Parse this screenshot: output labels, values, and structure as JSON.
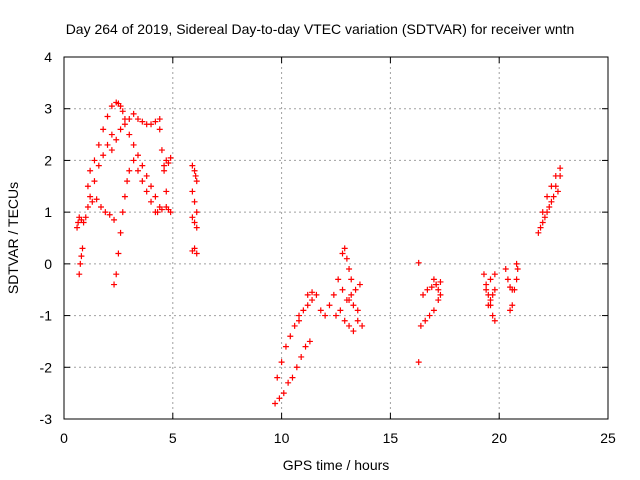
{
  "chart_data": {
    "type": "scatter",
    "title": "Day 264 of 2019, Sidereal Day-to-day VTEC variation (SDTVAR) for receiver wntn",
    "xlabel": "GPS time / hours",
    "ylabel": "SDTVAR / TECUs",
    "xlim": [
      0,
      25
    ],
    "ylim": [
      -3,
      4
    ],
    "xticks": [
      0,
      5,
      10,
      15,
      20,
      25
    ],
    "yticks": [
      -3,
      -2,
      -1,
      0,
      1,
      2,
      3,
      4
    ],
    "grid": true,
    "marker": "+",
    "color": "#ff0000",
    "series": [
      {
        "name": "SDTVAR",
        "segments": [
          {
            "x": [
              0.6,
              0.65,
              0.7,
              0.8,
              0.9,
              1.0
            ],
            "y": [
              0.7,
              0.8,
              0.9,
              0.85,
              0.8,
              0.9
            ]
          },
          {
            "x": [
              0.7,
              0.75,
              0.8,
              0.85
            ],
            "y": [
              -0.2,
              0.0,
              0.15,
              0.3
            ]
          },
          {
            "x": [
              1.1,
              1.2,
              1.4,
              1.6,
              1.8,
              2.0,
              2.2,
              2.4
            ],
            "y": [
              1.5,
              1.8,
              2.0,
              2.3,
              2.6,
              2.85,
              3.05,
              3.12
            ]
          },
          {
            "x": [
              2.5,
              2.6,
              2.7,
              2.8
            ],
            "y": [
              3.1,
              3.05,
              2.95,
              2.8
            ]
          },
          {
            "x": [
              1.2,
              1.4,
              1.6,
              1.8,
              2.0,
              2.2
            ],
            "y": [
              1.3,
              1.6,
              1.9,
              2.1,
              2.3,
              2.5
            ]
          },
          {
            "x": [
              1.1,
              1.3,
              1.5,
              1.7,
              1.9,
              2.1,
              2.3
            ],
            "y": [
              1.1,
              1.2,
              1.25,
              1.1,
              1.0,
              0.95,
              0.85
            ]
          },
          {
            "x": [
              2.3,
              2.4,
              2.5,
              2.6,
              2.7,
              2.8,
              2.9,
              3.0
            ],
            "y": [
              -0.4,
              -0.2,
              0.2,
              0.6,
              1.0,
              1.3,
              1.6,
              1.8
            ]
          },
          {
            "x": [
              2.2,
              2.4,
              2.6,
              2.8,
              3.0
            ],
            "y": [
              2.2,
              2.4,
              2.6,
              2.7,
              2.8
            ]
          },
          {
            "x": [
              3.2,
              3.4,
              3.6,
              3.8,
              4.0,
              4.2,
              4.4
            ],
            "y": [
              2.9,
              2.8,
              2.75,
              2.7,
              2.7,
              2.75,
              2.8
            ]
          },
          {
            "x": [
              3.0,
              3.2,
              3.4,
              3.6,
              3.8,
              4.0,
              4.2,
              4.4
            ],
            "y": [
              2.5,
              2.3,
              2.1,
              1.9,
              1.7,
              1.5,
              1.3,
              1.1
            ]
          },
          {
            "x": [
              3.2,
              3.4,
              3.6,
              3.8,
              4.0,
              4.2
            ],
            "y": [
              2.0,
              1.8,
              1.6,
              1.4,
              1.2,
              1.0
            ]
          },
          {
            "x": [
              4.4,
              4.5,
              4.6,
              4.7,
              4.8
            ],
            "y": [
              2.6,
              2.2,
              1.8,
              1.4,
              1.05
            ]
          },
          {
            "x": [
              4.3,
              4.5,
              4.7,
              4.9
            ],
            "y": [
              1.0,
              1.05,
              1.1,
              1.0
            ]
          },
          {
            "x": [
              4.6,
              4.7,
              4.8,
              4.9
            ],
            "y": [
              1.9,
              2.0,
              1.95,
              2.05
            ]
          },
          {
            "x": [
              5.9,
              6.0,
              6.05,
              6.1
            ],
            "y": [
              1.9,
              1.8,
              1.7,
              1.6
            ]
          },
          {
            "x": [
              5.9,
              6.0,
              6.1
            ],
            "y": [
              1.4,
              1.2,
              1.0
            ]
          },
          {
            "x": [
              5.9,
              6.0,
              6.1
            ],
            "y": [
              0.9,
              0.8,
              0.7
            ]
          },
          {
            "x": [
              5.9,
              6.0,
              6.1
            ],
            "y": [
              0.25,
              0.3,
              0.2
            ]
          },
          {
            "x": [
              9.7,
              9.9,
              10.1,
              10.3,
              10.5,
              10.7,
              10.9,
              11.1,
              11.3
            ],
            "y": [
              -2.7,
              -2.6,
              -2.5,
              -2.3,
              -2.2,
              -2.0,
              -1.8,
              -1.6,
              -1.5
            ]
          },
          {
            "x": [
              9.8,
              10.0,
              10.2,
              10.4,
              10.6,
              10.8
            ],
            "y": [
              -2.2,
              -1.9,
              -1.6,
              -1.4,
              -1.2,
              -1.0
            ]
          },
          {
            "x": [
              10.8,
              11.0,
              11.2,
              11.4
            ],
            "y": [
              -1.1,
              -0.9,
              -0.8,
              -0.7
            ]
          },
          {
            "x": [
              11.2,
              11.4,
              11.6
            ],
            "y": [
              -0.6,
              -0.55,
              -0.6
            ]
          },
          {
            "x": [
              11.8,
              12.0,
              12.2,
              12.4,
              12.6,
              12.8
            ],
            "y": [
              -0.9,
              -1.0,
              -0.8,
              -0.6,
              -0.3,
              0.2
            ]
          },
          {
            "x": [
              12.9,
              13.0,
              13.1,
              13.2
            ],
            "y": [
              0.3,
              0.1,
              -0.1,
              -0.3
            ]
          },
          {
            "x": [
              12.8,
              13.0,
              13.2,
              13.4,
              13.6
            ],
            "y": [
              -0.5,
              -0.7,
              -0.6,
              -0.5,
              -0.4
            ]
          },
          {
            "x": [
              12.5,
              12.7,
              12.9,
              13.1,
              13.3,
              13.5
            ],
            "y": [
              -1.0,
              -0.9,
              -1.1,
              -1.2,
              -1.3,
              -1.1
            ]
          },
          {
            "x": [
              13.1,
              13.3,
              13.5,
              13.7
            ],
            "y": [
              -0.7,
              -0.8,
              -0.9,
              -1.2
            ]
          },
          {
            "x": [
              16.3
            ],
            "y": [
              0.02
            ]
          },
          {
            "x": [
              16.3
            ],
            "y": [
              -1.9
            ]
          },
          {
            "x": [
              16.4,
              16.6,
              16.8,
              17.0,
              17.2
            ],
            "y": [
              -1.2,
              -1.1,
              -1.0,
              -0.9,
              -0.7
            ]
          },
          {
            "x": [
              16.5,
              16.7,
              16.9,
              17.1,
              17.3
            ],
            "y": [
              -0.6,
              -0.5,
              -0.45,
              -0.4,
              -0.35
            ]
          },
          {
            "x": [
              17.0,
              17.1,
              17.2,
              17.3
            ],
            "y": [
              -0.3,
              -0.4,
              -0.5,
              -0.6
            ]
          },
          {
            "x": [
              19.3,
              19.4,
              19.5,
              19.6,
              19.7,
              19.8
            ],
            "y": [
              -0.2,
              -0.4,
              -0.6,
              -0.8,
              -1.0,
              -1.1
            ]
          },
          {
            "x": [
              19.4,
              19.6,
              19.8
            ],
            "y": [
              -0.5,
              -0.3,
              -0.2
            ]
          },
          {
            "x": [
              19.5,
              19.6,
              19.7,
              19.8
            ],
            "y": [
              -0.8,
              -0.7,
              -0.6,
              -0.5
            ]
          },
          {
            "x": [
              20.3,
              20.4,
              20.5,
              20.6
            ],
            "y": [
              -0.1,
              -0.3,
              -0.45,
              -0.5
            ]
          },
          {
            "x": [
              20.5,
              20.6,
              20.7,
              20.8
            ],
            "y": [
              -0.9,
              -0.8,
              -0.5,
              -0.3
            ]
          },
          {
            "x": [
              20.8,
              20.85
            ],
            "y": [
              0.0,
              -0.1
            ]
          },
          {
            "x": [
              21.8,
              22.0,
              22.2,
              22.4,
              22.6,
              22.8
            ],
            "y": [
              0.6,
              0.8,
              1.0,
              1.2,
              1.5,
              1.7
            ]
          },
          {
            "x": [
              22.0,
              22.2,
              22.4,
              22.6,
              22.8
            ],
            "y": [
              1.0,
              1.3,
              1.5,
              1.7,
              1.85
            ]
          },
          {
            "x": [
              21.9,
              22.1,
              22.3,
              22.5,
              22.7
            ],
            "y": [
              0.7,
              0.9,
              1.1,
              1.3,
              1.4
            ]
          }
        ]
      }
    ]
  }
}
